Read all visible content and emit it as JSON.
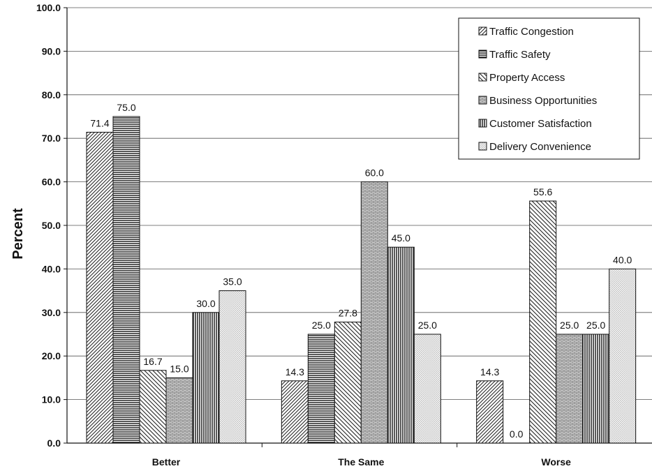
{
  "chart_data": {
    "type": "bar",
    "ylabel": "Percent",
    "xlabel": "",
    "ylim": [
      0,
      100
    ],
    "y_ticks": [
      "0.0",
      "10.0",
      "20.0",
      "30.0",
      "40.0",
      "50.0",
      "60.0",
      "70.0",
      "80.0",
      "90.0",
      "100.0"
    ],
    "grid": true,
    "legend_position": "top-right",
    "categories": [
      "Better",
      "The Same",
      "Worse"
    ],
    "series": [
      {
        "name": "Traffic Congestion",
        "values": [
          71.4,
          14.3,
          14.3
        ],
        "labels": [
          "71.4",
          "14.3",
          "14.3"
        ],
        "pattern": "diag-right"
      },
      {
        "name": "Traffic Safety",
        "values": [
          75.0,
          25.0,
          0.0
        ],
        "labels": [
          "75.0",
          "25.0",
          "0.0"
        ],
        "pattern": "horizontal"
      },
      {
        "name": "Property Access",
        "values": [
          16.7,
          27.8,
          55.6
        ],
        "labels": [
          "16.7",
          "27.8",
          "55.6"
        ],
        "pattern": "diag-left"
      },
      {
        "name": "Business Opportunities",
        "values": [
          15.0,
          60.0,
          25.0
        ],
        "labels": [
          "15.0",
          "60.0",
          "25.0"
        ],
        "pattern": "brick"
      },
      {
        "name": "Customer Satisfaction",
        "values": [
          30.0,
          45.0,
          25.0
        ],
        "labels": [
          "30.0",
          "45.0",
          "25.0"
        ],
        "pattern": "vertical"
      },
      {
        "name": "Delivery Convenience",
        "values": [
          35.0,
          25.0,
          40.0
        ],
        "labels": [
          "35.0",
          "25.0",
          "40.0"
        ],
        "pattern": "dots"
      }
    ]
  }
}
